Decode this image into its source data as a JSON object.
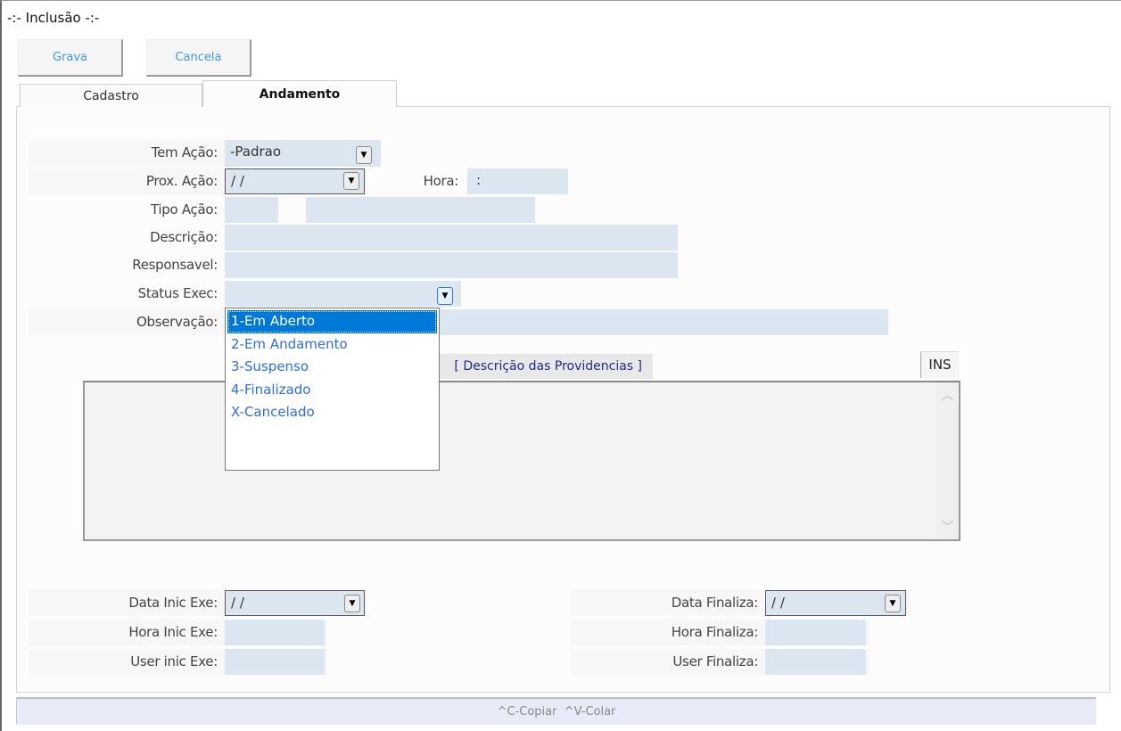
{
  "window": {
    "title": "-:- Inclusão -:-"
  },
  "toolbar": {
    "save_label": "Grava",
    "cancel_label": "Cancela"
  },
  "tabs": [
    {
      "label": "Cadastro",
      "active": false
    },
    {
      "label": "Andamento",
      "active": true
    }
  ],
  "form": {
    "tem_acao": {
      "label": "Tem Ação:",
      "value": "-Padrao"
    },
    "prox_acao": {
      "label": "Prox. Ação:",
      "value": " /  /"
    },
    "hora": {
      "label": "Hora:",
      "value": ":"
    },
    "tipo_acao": {
      "label": "Tipo Ação:",
      "code": "",
      "desc": ""
    },
    "descricao": {
      "label": "Descrição:",
      "value": ""
    },
    "responsavel": {
      "label": "Responsavel:",
      "value": ""
    },
    "status_exec": {
      "label": "Status Exec:",
      "value": "",
      "options": [
        "1-Em Aberto",
        "2-Em Andamento",
        "3-Suspenso",
        "4-Finalizado",
        "X-Cancelado"
      ],
      "selected": "1-Em Aberto"
    },
    "observacao": {
      "label": "Observação:",
      "value": ""
    },
    "providencias": {
      "label": "[ Descrição das Providencias ]",
      "mode": "INS",
      "value": ""
    },
    "data_inic_exe": {
      "label": "Data Inic Exe:",
      "value": " /  /"
    },
    "hora_inic_exe": {
      "label": "Hora Inic Exe:",
      "value": ""
    },
    "user_inic_exe": {
      "label": "User inic Exe:",
      "value": ""
    },
    "data_finaliza": {
      "label": "Data Finaliza:",
      "value": " /  /"
    },
    "hora_finaliza": {
      "label": "Hora Finaliza:",
      "value": ""
    },
    "user_finaliza": {
      "label": "User Finaliza:",
      "value": ""
    }
  },
  "statusbar": {
    "text": "^C-Copiar  ^V-Colar"
  },
  "colors": {
    "input_bg": "#dce6f0",
    "accent": "#0078d7",
    "button_text": "#3a9ae8",
    "list_text": "#2e6fd6"
  }
}
